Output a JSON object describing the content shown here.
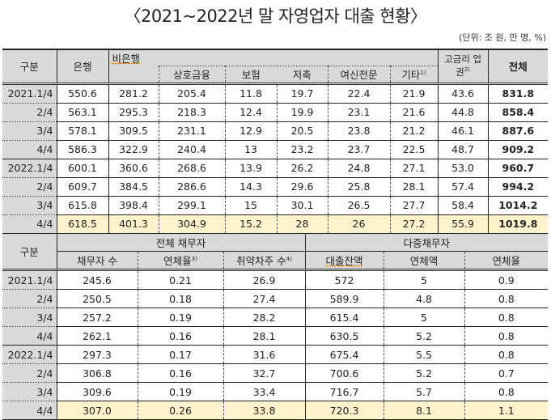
{
  "title": "〈2021~2022년 말 자영업자 대출 현황〉",
  "unit": "(단위: 조 원, 만 명, %)",
  "table1": {
    "headers": {
      "category": "구분",
      "bank": "은행",
      "nonbank": "비은행",
      "mutual": "상호금융",
      "insurance": "보험",
      "savings": "저축",
      "credit": "여신전문",
      "other": "기타",
      "other_note": "1)",
      "highrate": "고금리 업권",
      "highrate_note": "2)",
      "total": "전체"
    },
    "rows": [
      {
        "label": "2021.1/4",
        "values": [
          "550.6",
          "281.2",
          "205.4",
          "11.8",
          "19.7",
          "22.4",
          "21.9",
          "43.6",
          "831.8"
        ]
      },
      {
        "label": "2/4",
        "values": [
          "563.1",
          "295.3",
          "218.3",
          "12.4",
          "19.9",
          "23.1",
          "21.6",
          "44.8",
          "858.4"
        ]
      },
      {
        "label": "3/4",
        "values": [
          "578.1",
          "309.5",
          "231.1",
          "12.9",
          "20.5",
          "23.8",
          "21.2",
          "46.1",
          "887.6"
        ]
      },
      {
        "label": "4/4",
        "values": [
          "586.3",
          "322.9",
          "240.4",
          "13",
          "23.2",
          "23.7",
          "22.5",
          "48.7",
          "909.2"
        ]
      },
      {
        "label": "2022.1/4",
        "values": [
          "600.1",
          "360.6",
          "268.6",
          "13.9",
          "26.2",
          "24.8",
          "27.1",
          "53.0",
          "960.7"
        ]
      },
      {
        "label": "2/4",
        "values": [
          "609.7",
          "384.5",
          "286.6",
          "14.3",
          "29.6",
          "25.8",
          "28.1",
          "57.4",
          "994.2"
        ]
      },
      {
        "label": "3/4",
        "values": [
          "615.8",
          "398.4",
          "299.1",
          "15",
          "30.1",
          "26.5",
          "27.7",
          "58.4",
          "1014.2"
        ]
      },
      {
        "label": "4/4",
        "values": [
          "618.5",
          "401.3",
          "304.9",
          "15.2",
          "28",
          "26",
          "27.2",
          "55.9",
          "1019.8"
        ]
      }
    ]
  },
  "table2": {
    "headers": {
      "category": "구분",
      "all_borrowers": "전체 채무자",
      "multi_borrowers": "다중채무자",
      "borrower_count": "채무자 수",
      "delinquency_rate": "연체율",
      "delinquency_rate_note": "3)",
      "vulnerable_count": "취약차주 수",
      "vulnerable_note": "4)",
      "loan_balance": "대출잔액",
      "delinquent_amount": "연체액",
      "multi_delinquency_rate": "연체율"
    },
    "rows": [
      {
        "label": "2021.1/4",
        "values": [
          "245.6",
          "0.21",
          "26.9",
          "572",
          "5",
          "0.9"
        ]
      },
      {
        "label": "2/4",
        "values": [
          "250.5",
          "0.18",
          "27.4",
          "589.9",
          "4.8",
          "0.8"
        ]
      },
      {
        "label": "3/4",
        "values": [
          "257.2",
          "0.19",
          "28.2",
          "615.4",
          "5",
          "0.8"
        ]
      },
      {
        "label": "4/4",
        "values": [
          "262.1",
          "0.16",
          "28.1",
          "630.5",
          "5.2",
          "0.8"
        ]
      },
      {
        "label": "2022.1/4",
        "values": [
          "297.3",
          "0.17",
          "31.6",
          "675.4",
          "5.5",
          "0.8"
        ]
      },
      {
        "label": "2/4",
        "values": [
          "306.8",
          "0.16",
          "32.7",
          "700.6",
          "5.2",
          "0.7"
        ]
      },
      {
        "label": "3/4",
        "values": [
          "309.6",
          "0.19",
          "33.4",
          "716.7",
          "5.7",
          "0.8"
        ]
      },
      {
        "label": "4/4",
        "values": [
          "307.0",
          "0.26",
          "33.8",
          "720.3",
          "8.1",
          "1.1"
        ]
      }
    ]
  },
  "colors": {
    "header_bg": "#d9d9d9",
    "highlight_bg": "#fff2cc"
  }
}
